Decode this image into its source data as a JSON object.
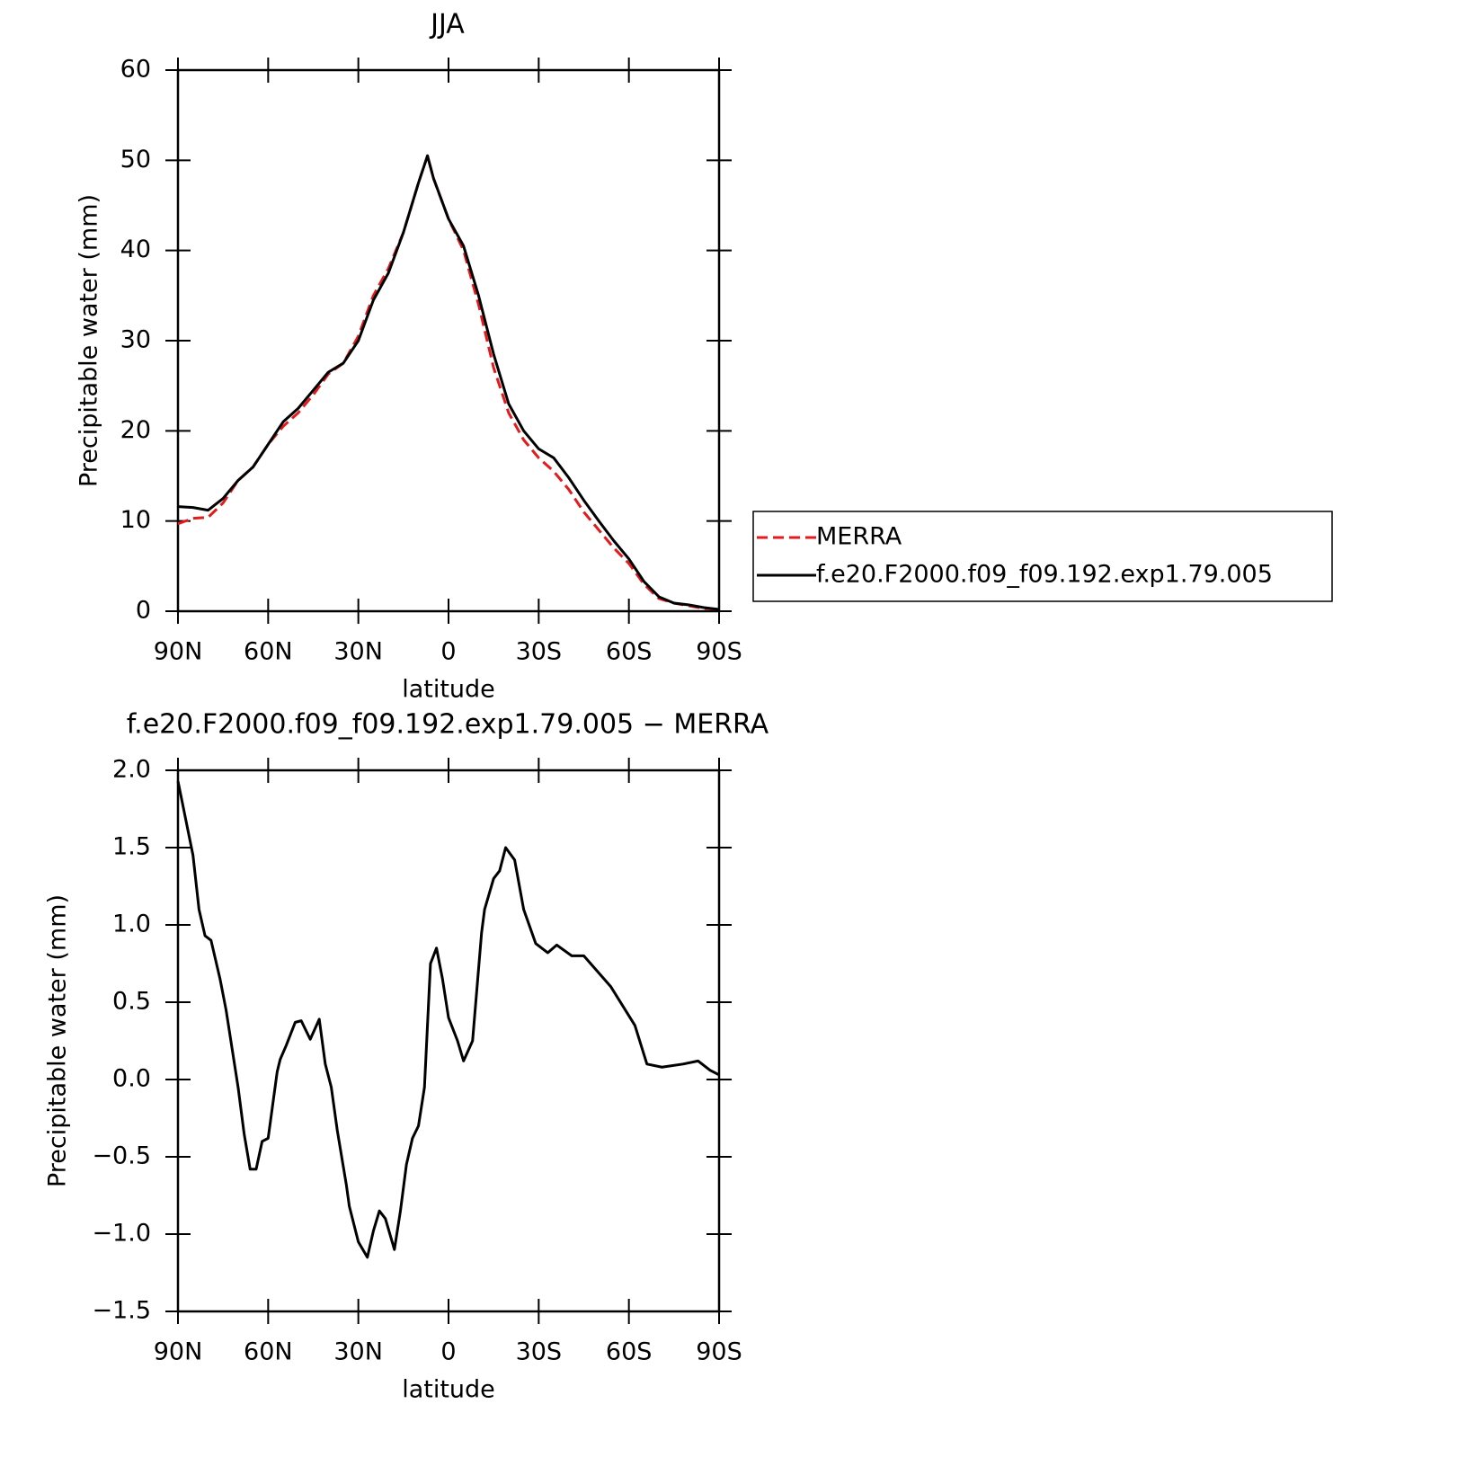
{
  "chart_data": [
    {
      "type": "line",
      "title": "JJA",
      "xlabel": "latitude",
      "ylabel": "Precipitable water (mm)",
      "x": [
        90,
        85,
        80,
        75,
        70,
        65,
        60,
        55,
        50,
        45,
        40,
        35,
        30,
        25,
        20,
        15,
        10,
        7,
        5,
        0,
        -5,
        -10,
        -15,
        -20,
        -25,
        -30,
        -35,
        -40,
        -45,
        -50,
        -55,
        -60,
        -65,
        -70,
        -75,
        -80,
        -85,
        -90
      ],
      "series": [
        {
          "name": "MERRA",
          "color": "#e41a1c",
          "dashed": true,
          "values": [
            9.7,
            10.3,
            10.4,
            12,
            14.5,
            16,
            18.5,
            20.5,
            22,
            24,
            26.3,
            27.5,
            30.5,
            35,
            38,
            42,
            47.5,
            50.5,
            48,
            43.5,
            40,
            34,
            27,
            22,
            19,
            17,
            15.5,
            13.5,
            11,
            9,
            7,
            5.3,
            3,
            1.4,
            0.9,
            0.6,
            0.3,
            0.2
          ]
        },
        {
          "name": "f.e20.F2000.f09_f09.192.exp1.79.005",
          "color": "#000000",
          "dashed": false,
          "values": [
            11.6,
            11.5,
            11.2,
            12.5,
            14.5,
            16,
            18.5,
            21,
            22.5,
            24.5,
            26.5,
            27.5,
            30,
            34.5,
            37.5,
            42,
            47.5,
            50.5,
            48,
            43.5,
            40.5,
            35,
            28.5,
            23,
            20,
            18,
            17,
            14.8,
            12.3,
            10,
            7.8,
            5.8,
            3.3,
            1.6,
            0.9,
            0.7,
            0.4,
            0.2
          ]
        }
      ],
      "xlim": [
        90,
        -90
      ],
      "xticks": [
        {
          "value": 90,
          "label": "90N"
        },
        {
          "value": 60,
          "label": "60N"
        },
        {
          "value": 30,
          "label": "30N"
        },
        0,
        {
          "value": -30,
          "label": "30S"
        },
        {
          "value": -60,
          "label": "60S"
        },
        {
          "value": -90,
          "label": "90S"
        }
      ],
      "ylim": [
        0,
        60
      ],
      "yticks": [
        0,
        10,
        20,
        30,
        40,
        50,
        60
      ],
      "legend": "right"
    },
    {
      "type": "line",
      "title": "f.e20.F2000.f09_f09.192.exp1.79.005 − MERRA",
      "xlabel": "latitude",
      "ylabel": "Precipitable water (mm)",
      "x": [
        90,
        85,
        83,
        81,
        79,
        76,
        74,
        72,
        70,
        68,
        66,
        64,
        62,
        60,
        57,
        56,
        54,
        51,
        49,
        46,
        43,
        41,
        39,
        37,
        34,
        33,
        30,
        27,
        25,
        23,
        21,
        18,
        16,
        14,
        12,
        10,
        8,
        6,
        4,
        2,
        0,
        -3,
        -5,
        -8,
        -11,
        -12,
        -15,
        -17,
        -19,
        -22,
        -25,
        -29,
        -33,
        -36,
        -41,
        -45,
        -54,
        -62,
        -66,
        -71,
        -78,
        -83,
        -87,
        -90
      ],
      "series": [
        {
          "name": null,
          "color": "#000000",
          "dashed": false,
          "values": [
            1.93,
            1.45,
            1.1,
            0.93,
            0.9,
            0.65,
            0.45,
            0.2,
            -0.05,
            -0.35,
            -0.58,
            -0.58,
            -0.4,
            -0.38,
            0.05,
            0.13,
            0.22,
            0.37,
            0.38,
            0.26,
            0.39,
            0.1,
            -0.05,
            -0.33,
            -0.68,
            -0.82,
            -1.05,
            -1.15,
            -0.98,
            -0.85,
            -0.9,
            -1.1,
            -0.85,
            -0.55,
            -0.38,
            -0.3,
            -0.05,
            0.75,
            0.85,
            0.65,
            0.4,
            0.25,
            0.12,
            0.25,
            0.95,
            1.1,
            1.3,
            1.35,
            1.5,
            1.42,
            1.1,
            0.88,
            0.82,
            0.87,
            0.8,
            0.8,
            0.6,
            0.35,
            0.1,
            0.08,
            0.1,
            0.12,
            0.06,
            0.03
          ]
        }
      ],
      "xlim": [
        90,
        -90
      ],
      "xticks": [
        {
          "value": 90,
          "label": "90N"
        },
        {
          "value": 60,
          "label": "60N"
        },
        {
          "value": 30,
          "label": "30N"
        },
        0,
        {
          "value": -30,
          "label": "30S"
        },
        {
          "value": -60,
          "label": "60S"
        },
        {
          "value": -90,
          "label": "90S"
        }
      ],
      "ylim": [
        -1.5,
        2
      ],
      "yticks": [
        {
          "value": -1.5,
          "label": "−1.5"
        },
        {
          "value": -1,
          "label": "−1.0"
        },
        {
          "value": -0.5,
          "label": "−0.5"
        },
        {
          "value": 0,
          "label": "0.0"
        },
        {
          "value": 0.5,
          "label": "0.5"
        },
        {
          "value": 1,
          "label": "1.0"
        },
        {
          "value": 1.5,
          "label": "1.5"
        },
        {
          "value": 2,
          "label": "2.0"
        }
      ]
    }
  ]
}
